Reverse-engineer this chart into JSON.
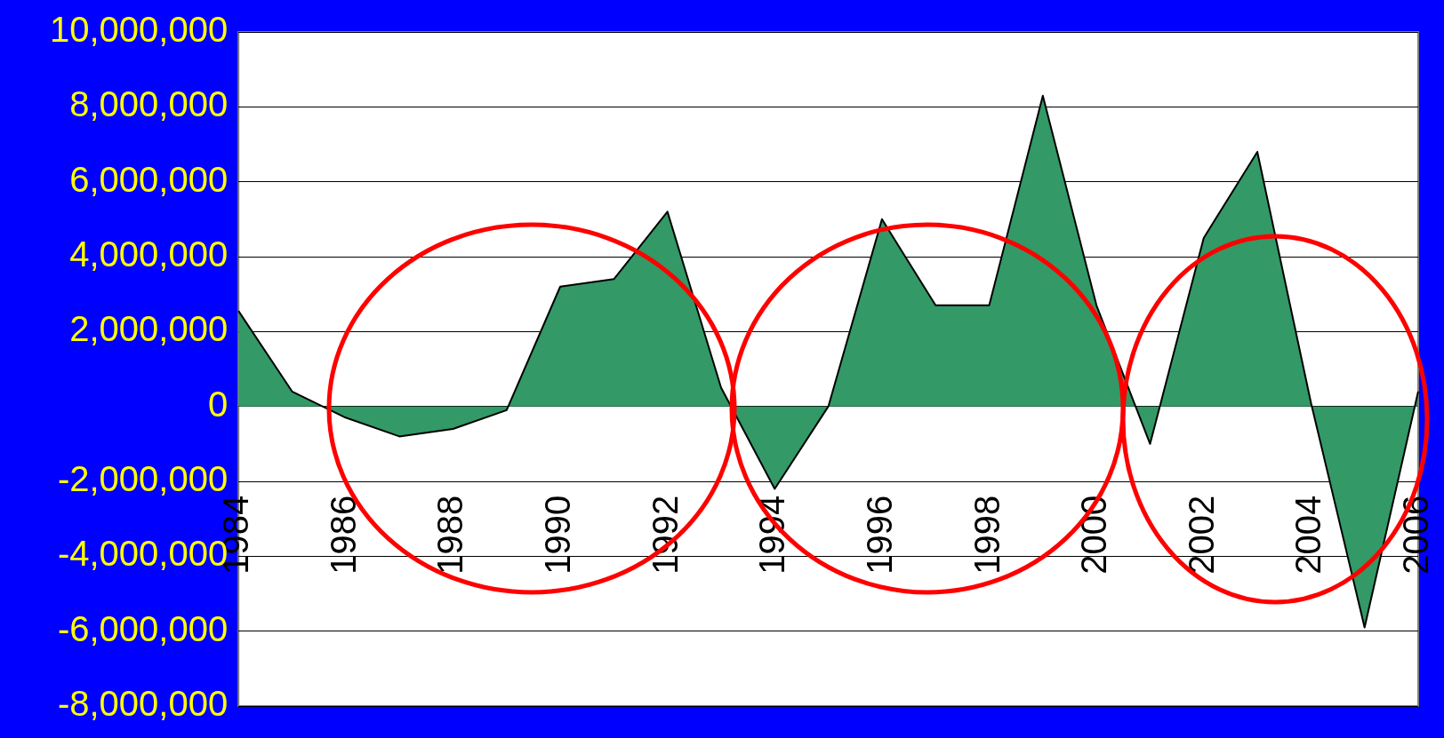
{
  "chart_data": {
    "type": "area",
    "categories": [
      "1984",
      null,
      "1986",
      null,
      "1988",
      null,
      "1990",
      null,
      "1992",
      null,
      "1994",
      null,
      "1996",
      null,
      "1998",
      null,
      "2000",
      null,
      "2002",
      null,
      "2004",
      null,
      "2006"
    ],
    "series": [
      {
        "color": "#339966",
        "values": [
          2550000,
          400000,
          -300000,
          -800000,
          -600000,
          -100000,
          3200000,
          3400000,
          5200000,
          500000,
          -2200000,
          0,
          5000000,
          2700000,
          2700000,
          8300000,
          2700000,
          -1000000,
          4500000,
          6800000,
          100000,
          -5900000,
          400000
        ]
      }
    ],
    "ylim": [
      -8000000,
      10000000
    ],
    "yticks": [
      {
        "value": -8000000,
        "label": "-8,000,000"
      },
      {
        "value": -6000000,
        "label": "-6,000,000"
      },
      {
        "value": -4000000,
        "label": "-4,000,000"
      },
      {
        "value": -2000000,
        "label": "-2,000,000"
      },
      {
        "value": 0,
        "label": "0"
      },
      {
        "value": 2000000,
        "label": "2,000,000"
      },
      {
        "value": 4000000,
        "label": "4,000,000"
      },
      {
        "value": 6000000,
        "label": "6,000,000"
      },
      {
        "value": 8000000,
        "label": "8,000,000"
      },
      {
        "value": 10000000,
        "label": "10,000,000"
      }
    ],
    "grid": "y",
    "legend": false
  }
}
